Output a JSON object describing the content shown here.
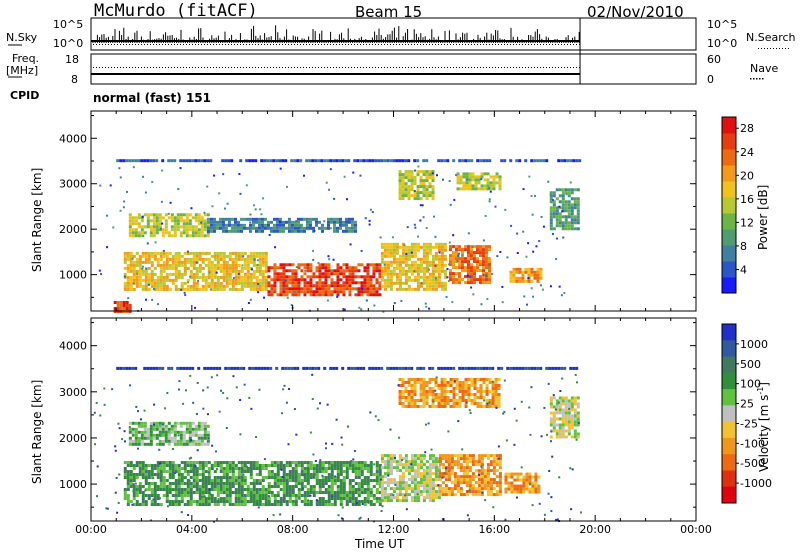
{
  "header": {
    "station": "McMurdo (fitACF)",
    "beam": "Beam 15",
    "date": "02/Nov/2010"
  },
  "side_labels": {
    "nsky": "N.Sky",
    "freq": "Freq.",
    "mhz": "[MHz]",
    "cpid": "CPID",
    "nsearch": "N.Search",
    "nave": "Nave"
  },
  "top_axes": {
    "nsky_hi": "10^5",
    "nsky_lo": "10^0",
    "nsearch_hi": "10^5",
    "nsearch_lo": "10^0",
    "freq_hi": "18",
    "freq_lo": "8",
    "nave_hi": "60",
    "nave_lo": "0"
  },
  "cpid_text": "normal (fast) 151",
  "chart_data": [
    {
      "type": "heatmap",
      "panel": "power",
      "ylabel": "Slant Range [km]",
      "ylim": [
        200,
        4600
      ],
      "yticks": [
        1000,
        2000,
        3000,
        4000
      ],
      "xlim": [
        0,
        24
      ],
      "colorbar": {
        "label": "Power [dB]",
        "ticks": [
          "4",
          "8",
          "12",
          "16",
          "20",
          "24",
          "28"
        ],
        "colors": [
          "#1a1aff",
          "#2c55c9",
          "#3f7fa0",
          "#4f9c73",
          "#6bb545",
          "#b8c832",
          "#f0c21c",
          "#f39a18",
          "#ee6a10",
          "#e63d10",
          "#e01010"
        ]
      },
      "bands": [
        {
          "t0": 1.0,
          "t1": 19.4,
          "r0": 3480,
          "r1": 3540,
          "level": 1
        },
        {
          "t0": 1.5,
          "t1": 4.6,
          "r0": 1850,
          "r1": 2350,
          "level": 5
        },
        {
          "t0": 4.6,
          "t1": 10.5,
          "r0": 1950,
          "r1": 2250,
          "level": 2
        },
        {
          "t0": 1.3,
          "t1": 7.0,
          "r0": 700,
          "r1": 1500,
          "level": 6
        },
        {
          "t0": 7.0,
          "t1": 11.5,
          "r0": 550,
          "r1": 1250,
          "level": 9
        },
        {
          "t0": 11.5,
          "t1": 14.0,
          "r0": 650,
          "r1": 1700,
          "level": 6
        },
        {
          "t0": 14.2,
          "t1": 15.8,
          "r0": 850,
          "r1": 1650,
          "level": 8
        },
        {
          "t0": 16.6,
          "t1": 17.8,
          "r0": 850,
          "r1": 1150,
          "level": 7
        },
        {
          "t0": 18.2,
          "t1": 19.3,
          "r0": 2000,
          "r1": 2900,
          "level": 3
        },
        {
          "t0": 14.5,
          "t1": 16.2,
          "r0": 2900,
          "r1": 3250,
          "level": 5
        },
        {
          "t0": 12.2,
          "t1": 13.6,
          "r0": 2700,
          "r1": 3300,
          "level": 5
        },
        {
          "t0": 0.9,
          "t1": 1.6,
          "r0": 200,
          "r1": 420,
          "level": 9
        }
      ]
    },
    {
      "type": "heatmap",
      "panel": "velocity",
      "ylabel": "Slant Range [km]",
      "xlabel": "Time UT",
      "ylim": [
        200,
        4600
      ],
      "yticks": [
        1000,
        2000,
        3000,
        4000
      ],
      "xlim": [
        0,
        24
      ],
      "xticks": [
        "00:00",
        "04:00",
        "08:00",
        "12:00",
        "16:00",
        "20:00",
        "00:00"
      ],
      "colorbar": {
        "label": "Velocity [m s^-1]",
        "ticks": [
          "1000",
          "500",
          "100",
          "25",
          "-25",
          "-100",
          "-500",
          "-1000"
        ],
        "colors": [
          "#2030c8",
          "#2f5aa0",
          "#3f7a5e",
          "#2f8f3a",
          "#60c040",
          "#c0c0c0",
          "#f2c230",
          "#f0961a",
          "#ee6a10",
          "#e03010",
          "#e00010"
        ]
      },
      "bands": [
        {
          "t0": 1.0,
          "t1": 19.4,
          "r0": 3480,
          "r1": 3540,
          "level": 0
        },
        {
          "t0": 1.5,
          "t1": 4.6,
          "r0": 1850,
          "r1": 2350,
          "level": 4
        },
        {
          "t0": 1.3,
          "t1": 11.5,
          "r0": 550,
          "r1": 1500,
          "level": 3
        },
        {
          "t0": 11.5,
          "t1": 13.8,
          "r0": 650,
          "r1": 1650,
          "level": 5
        },
        {
          "t0": 13.8,
          "t1": 16.2,
          "r0": 800,
          "r1": 1650,
          "level": 7
        },
        {
          "t0": 16.4,
          "t1": 17.8,
          "r0": 850,
          "r1": 1250,
          "level": 7
        },
        {
          "t0": 18.2,
          "t1": 19.3,
          "r0": 2000,
          "r1": 2900,
          "level": 5
        },
        {
          "t0": 12.2,
          "t1": 16.2,
          "r0": 2700,
          "r1": 3300,
          "level": 7
        }
      ]
    }
  ]
}
